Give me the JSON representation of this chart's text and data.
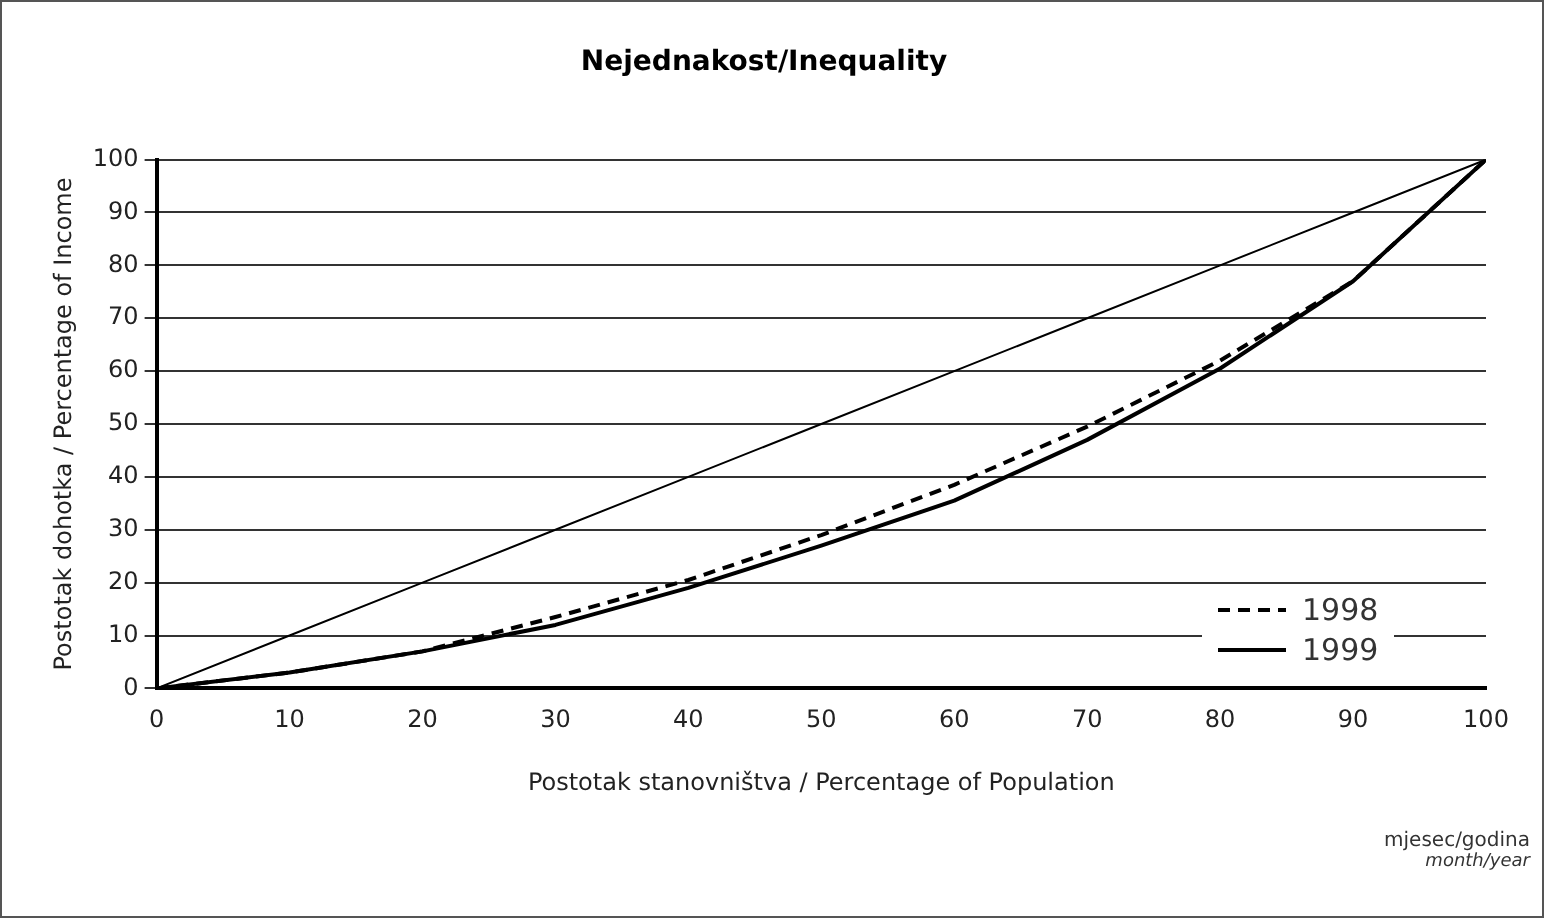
{
  "chart_data": {
    "type": "line",
    "title": "Nejednakost/Inequality",
    "xlabel": "Postotak stanovništva / Percentage of Population",
    "ylabel": "Postotak dohotka / Percentage of Income",
    "x": [
      0,
      10,
      20,
      30,
      40,
      50,
      60,
      70,
      80,
      90,
      100
    ],
    "series": [
      {
        "name": "1998",
        "color": "#000000",
        "line_style": "dashed",
        "values": [
          0,
          3,
          7,
          13.5,
          20.5,
          29,
          38.5,
          49.5,
          62,
          77,
          100
        ]
      },
      {
        "name": "1999",
        "color": "#000000",
        "line_style": "solid",
        "values": [
          0,
          3,
          7,
          12,
          19,
          27,
          35.5,
          47,
          60.5,
          77,
          100
        ]
      },
      {
        "color": "#000000",
        "line_style": "solid",
        "values": [
          0,
          10,
          20,
          30,
          40,
          50,
          60,
          70,
          80,
          90,
          100
        ]
      }
    ],
    "xlim": [
      0,
      100
    ],
    "xticks": [
      0,
      10,
      20,
      30,
      40,
      50,
      60,
      70,
      80,
      90,
      100
    ],
    "ylim": [
      0,
      100
    ],
    "yticks": [
      0,
      10,
      20,
      30,
      40,
      50,
      60,
      70,
      80,
      90,
      100
    ],
    "grid": "y",
    "legend": "right",
    "marker": "none",
    "annotations": [
      "mjesec/godina",
      "month/year"
    ]
  }
}
